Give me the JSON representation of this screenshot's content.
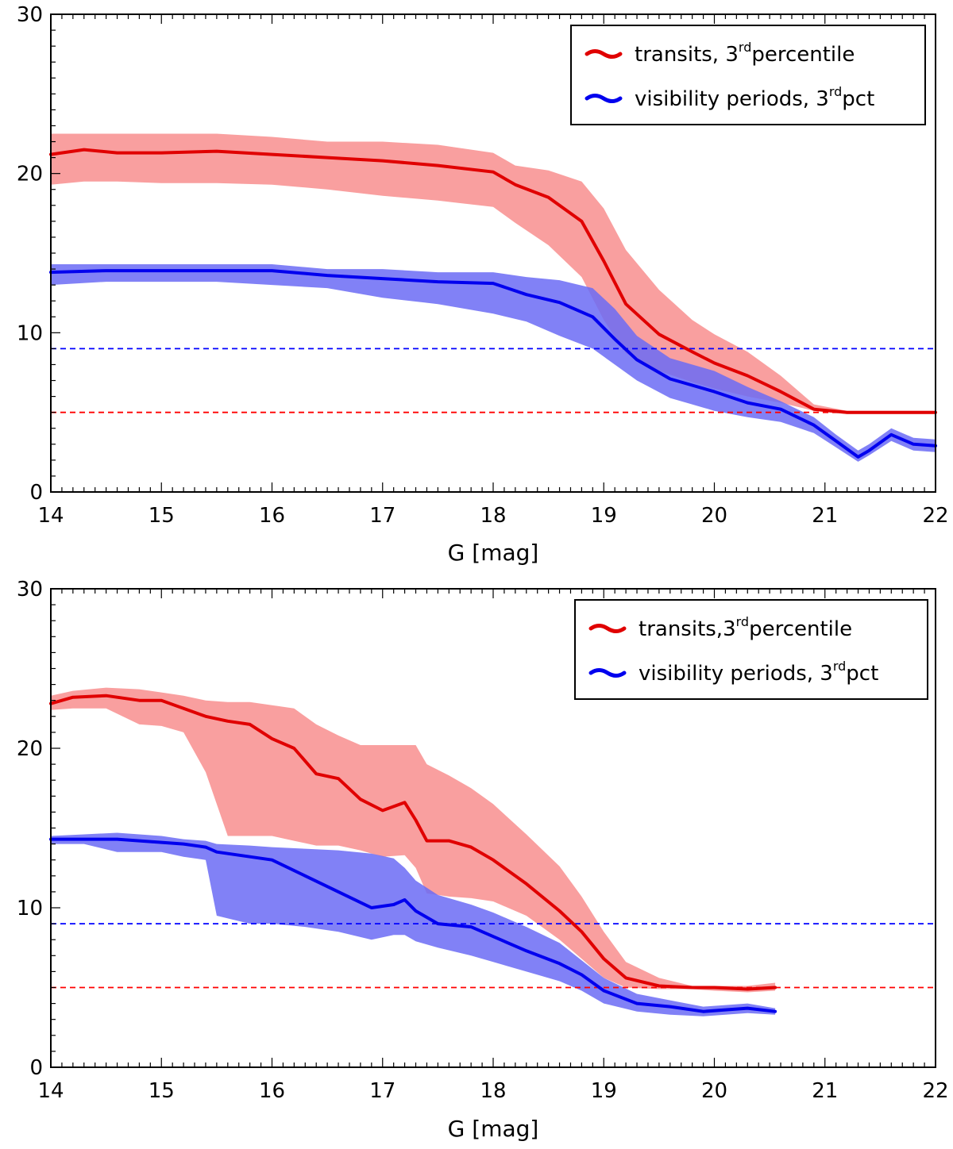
{
  "chart_data": [
    {
      "type": "line",
      "xlabel": "G [mag]",
      "ylabel": "",
      "xlim": [
        14,
        22
      ],
      "ylim": [
        0,
        30
      ],
      "xticks": [
        "14",
        "15",
        "16",
        "17",
        "18",
        "19",
        "20",
        "21",
        "22"
      ],
      "yticks": [
        "0",
        "10",
        "20",
        "30"
      ],
      "legend_position": "top-right",
      "legend": [
        {
          "label": "transits, 3",
          "sup": "rd",
          "suffix": "percentile"
        },
        {
          "label": "visibility periods, 3",
          "sup": "rd",
          "suffix": "pct"
        }
      ],
      "hlines": [
        {
          "y": 9,
          "color": "#0000ff"
        },
        {
          "y": 5,
          "color": "#ff0000"
        }
      ],
      "series": [
        {
          "name": "transits",
          "color": "#e00000",
          "band_color": "#f77f7f",
          "x": [
            14.0,
            14.3,
            14.6,
            15.0,
            15.5,
            16.0,
            16.5,
            17.0,
            17.5,
            18.0,
            18.2,
            18.5,
            18.8,
            19.0,
            19.2,
            19.5,
            19.8,
            20.0,
            20.3,
            20.6,
            20.9,
            21.2,
            21.5,
            21.8,
            22.0
          ],
          "median": [
            21.2,
            21.5,
            21.3,
            21.3,
            21.4,
            21.2,
            21.0,
            20.8,
            20.5,
            20.1,
            19.3,
            18.5,
            17.0,
            14.5,
            11.8,
            9.9,
            8.8,
            8.1,
            7.3,
            6.3,
            5.2,
            5.0,
            5.0,
            5.0,
            5.0
          ],
          "lower": [
            19.3,
            19.5,
            19.5,
            19.4,
            19.4,
            19.3,
            19.0,
            18.6,
            18.3,
            17.9,
            16.9,
            15.5,
            13.5,
            10.8,
            8.7,
            7.6,
            6.9,
            6.5,
            6.0,
            5.6,
            5.1,
            4.9,
            4.9,
            4.9,
            4.9
          ],
          "upper": [
            22.5,
            22.5,
            22.5,
            22.5,
            22.5,
            22.3,
            22.0,
            22.0,
            21.8,
            21.3,
            20.5,
            20.2,
            19.5,
            17.8,
            15.2,
            12.7,
            10.8,
            9.9,
            8.8,
            7.3,
            5.5,
            5.1,
            5.1,
            5.1,
            5.1
          ]
        },
        {
          "name": "visibility periods",
          "color": "#0000ee",
          "band_color": "#6b6bf5",
          "x": [
            14.0,
            14.5,
            15.0,
            15.5,
            16.0,
            16.5,
            17.0,
            17.5,
            18.0,
            18.3,
            18.6,
            18.9,
            19.1,
            19.3,
            19.6,
            20.0,
            20.3,
            20.6,
            20.9,
            21.1,
            21.3,
            21.4,
            21.6,
            21.8,
            22.0
          ],
          "median": [
            13.8,
            13.9,
            13.9,
            13.9,
            13.9,
            13.6,
            13.4,
            13.2,
            13.1,
            12.4,
            11.9,
            11.0,
            9.6,
            8.3,
            7.1,
            6.3,
            5.6,
            5.2,
            4.2,
            3.2,
            2.2,
            2.6,
            3.6,
            3.0,
            2.9
          ],
          "lower": [
            13.0,
            13.2,
            13.2,
            13.2,
            13.0,
            12.8,
            12.2,
            11.8,
            11.2,
            10.7,
            9.8,
            9.0,
            8.0,
            7.0,
            5.9,
            5.1,
            4.7,
            4.4,
            3.7,
            2.8,
            1.9,
            2.3,
            3.2,
            2.6,
            2.5
          ],
          "upper": [
            14.3,
            14.3,
            14.3,
            14.3,
            14.3,
            14.0,
            14.0,
            13.8,
            13.8,
            13.5,
            13.3,
            12.8,
            11.5,
            9.8,
            8.4,
            7.6,
            6.6,
            5.7,
            4.7,
            3.6,
            2.6,
            3.0,
            4.0,
            3.4,
            3.3
          ]
        }
      ]
    },
    {
      "type": "line",
      "xlabel": "G [mag]",
      "ylabel": "",
      "xlim": [
        14,
        22
      ],
      "ylim": [
        0,
        30
      ],
      "xticks": [
        "14",
        "15",
        "16",
        "17",
        "18",
        "19",
        "20",
        "21",
        "22"
      ],
      "yticks": [
        "0",
        "10",
        "20",
        "30"
      ],
      "legend_position": "top-right",
      "legend": [
        {
          "label": "transits,3",
          "sup": "rd",
          "suffix": "percentile"
        },
        {
          "label": "visibility periods, 3",
          "sup": "rd",
          "suffix": "pct"
        }
      ],
      "hlines": [
        {
          "y": 9,
          "color": "#0000ff"
        },
        {
          "y": 5,
          "color": "#ff0000"
        }
      ],
      "series": [
        {
          "name": "transits",
          "color": "#e00000",
          "band_color": "#f77f7f",
          "x": [
            14.0,
            14.2,
            14.5,
            14.8,
            15.0,
            15.2,
            15.4,
            15.6,
            15.8,
            16.0,
            16.2,
            16.4,
            16.6,
            16.8,
            17.0,
            17.2,
            17.3,
            17.4,
            17.6,
            17.8,
            18.0,
            18.3,
            18.6,
            18.8,
            19.0,
            19.2,
            19.5,
            19.8,
            20.0,
            20.3,
            20.55
          ],
          "median": [
            22.8,
            23.2,
            23.3,
            23.0,
            23.0,
            22.5,
            22.0,
            21.7,
            21.5,
            20.6,
            20.0,
            18.4,
            18.1,
            16.8,
            16.1,
            16.6,
            15.5,
            14.2,
            14.2,
            13.8,
            13.0,
            11.5,
            9.8,
            8.5,
            6.8,
            5.6,
            5.1,
            5.0,
            5.0,
            4.9,
            5.0
          ],
          "lower": [
            22.4,
            22.5,
            22.5,
            21.5,
            21.4,
            21.0,
            18.5,
            14.5,
            14.5,
            14.5,
            14.2,
            13.9,
            13.9,
            13.6,
            13.2,
            13.3,
            12.5,
            10.9,
            10.7,
            10.6,
            10.4,
            9.5,
            8.0,
            6.8,
            5.6,
            5.0,
            4.9,
            4.9,
            4.8,
            4.7,
            4.8
          ],
          "upper": [
            23.3,
            23.6,
            23.8,
            23.7,
            23.5,
            23.3,
            23.0,
            22.9,
            22.9,
            22.7,
            22.5,
            21.5,
            20.8,
            20.2,
            20.2,
            20.2,
            20.2,
            19.0,
            18.3,
            17.5,
            16.5,
            14.6,
            12.6,
            10.7,
            8.5,
            6.6,
            5.6,
            5.1,
            5.1,
            5.1,
            5.3
          ]
        },
        {
          "name": "visibility periods",
          "color": "#0000ee",
          "band_color": "#6b6bf5",
          "x": [
            14.0,
            14.3,
            14.6,
            15.0,
            15.2,
            15.4,
            15.5,
            15.8,
            16.0,
            16.3,
            16.6,
            16.9,
            17.1,
            17.2,
            17.3,
            17.5,
            17.8,
            18.0,
            18.3,
            18.6,
            18.8,
            19.0,
            19.3,
            19.6,
            19.9,
            20.1,
            20.3,
            20.55
          ],
          "median": [
            14.3,
            14.3,
            14.3,
            14.1,
            14.0,
            13.8,
            13.5,
            13.2,
            13.0,
            12.0,
            11.0,
            10.0,
            10.2,
            10.5,
            9.8,
            9.0,
            8.8,
            8.2,
            7.3,
            6.5,
            5.8,
            4.8,
            4.0,
            3.8,
            3.5,
            3.6,
            3.7,
            3.5
          ],
          "lower": [
            14.0,
            14.0,
            13.5,
            13.5,
            13.2,
            13.0,
            9.5,
            9.0,
            9.0,
            8.8,
            8.5,
            8.0,
            8.3,
            8.3,
            7.9,
            7.5,
            7.0,
            6.6,
            6.0,
            5.4,
            4.8,
            4.0,
            3.5,
            3.3,
            3.2,
            3.3,
            3.4,
            3.3
          ],
          "upper": [
            14.5,
            14.6,
            14.7,
            14.5,
            14.3,
            14.2,
            14.0,
            13.9,
            13.8,
            13.7,
            13.6,
            13.4,
            13.1,
            12.5,
            11.7,
            10.8,
            10.2,
            9.7,
            8.8,
            7.8,
            6.7,
            5.6,
            4.6,
            4.2,
            3.8,
            3.9,
            4.0,
            3.7
          ]
        }
      ]
    }
  ]
}
